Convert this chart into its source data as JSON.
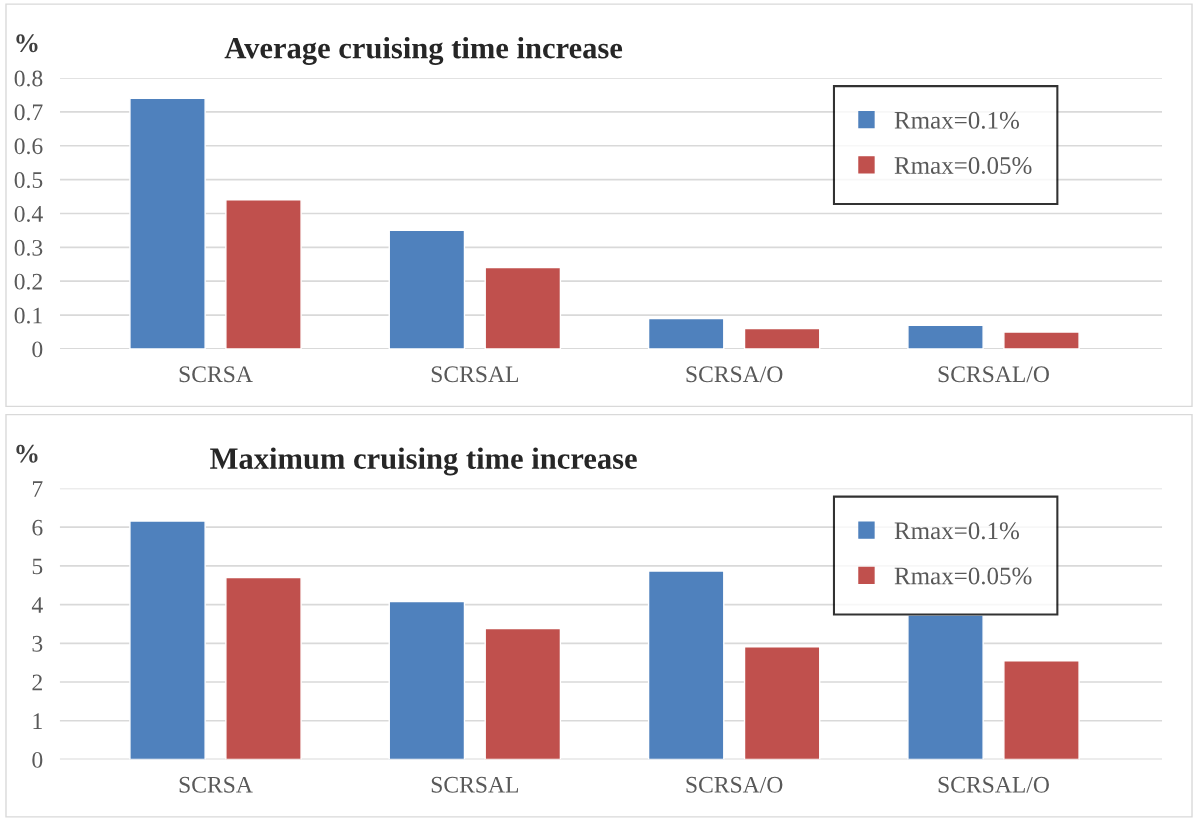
{
  "chart_data": [
    {
      "type": "bar",
      "title": "Average cruising time increase",
      "ylabel": "%",
      "categories": [
        "SCRSA",
        "SCRSAL",
        "SCRSA/O",
        "SCRSAL/O"
      ],
      "series": [
        {
          "name": "Rmax=0.1%",
          "color": "#4f81bd",
          "values": [
            0.74,
            0.35,
            0.09,
            0.07
          ]
        },
        {
          "name": "Rmax=0.05%",
          "color": "#c0504d",
          "values": [
            0.44,
            0.24,
            0.06,
            0.05
          ]
        }
      ],
      "ylim": [
        0,
        0.8
      ],
      "yticks": [
        0,
        0.1,
        0.2,
        0.3,
        0.4,
        0.5,
        0.6,
        0.7,
        0.8
      ],
      "grid": "y",
      "legend": "top right"
    },
    {
      "type": "bar",
      "title": "Maximum cruising time increase",
      "ylabel": "%",
      "categories": [
        "SCRSA",
        "SCRSAL",
        "SCRSA/O",
        "SCRSAL/O"
      ],
      "series": [
        {
          "name": "Rmax=0.1%",
          "color": "#4f81bd",
          "values": [
            6.16,
            4.08,
            4.87,
            3.73
          ]
        },
        {
          "name": "Rmax=0.05%",
          "color": "#c0504d",
          "values": [
            4.7,
            3.38,
            2.91,
            2.55
          ]
        }
      ],
      "ylim": [
        0,
        7
      ],
      "yticks": [
        0,
        1,
        2,
        3,
        4,
        5,
        6,
        7
      ],
      "grid": "y",
      "legend": "top right"
    }
  ]
}
